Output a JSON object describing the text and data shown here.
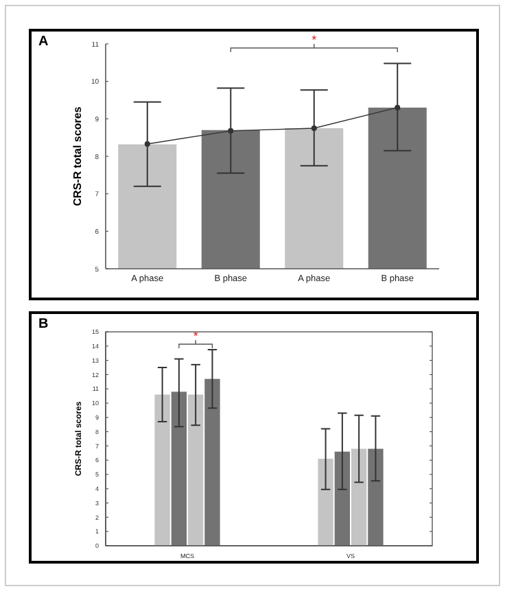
{
  "chart_data": [
    {
      "type": "bar",
      "title": "A",
      "ylabel": "CRS-R total scores",
      "categories": [
        "A phase",
        "B phase",
        "A phase",
        "B phase"
      ],
      "ylim": [
        5,
        11
      ],
      "yticks": [
        5,
        6,
        7,
        8,
        9,
        10,
        11
      ],
      "annotations": [
        "*"
      ],
      "series": [
        {
          "colors": [
            "#c4c4c4",
            "#737373",
            "#c4c4c4",
            "#737373"
          ],
          "values": [
            8.32,
            8.7,
            8.75,
            9.3
          ],
          "errors": [
            [
              7.2,
              9.45
            ],
            [
              7.55,
              9.82
            ],
            [
              7.75,
              9.77
            ],
            [
              8.15,
              10.48
            ]
          ]
        },
        {
          "type": "line",
          "color": "#333333",
          "marker": "circle",
          "values": [
            8.33,
            8.68,
            8.75,
            9.3
          ]
        }
      ]
    },
    {
      "type": "bar",
      "title": "B",
      "ylabel": "CRS-R total scores",
      "categories": [
        "MCS",
        "VS"
      ],
      "ylim": [
        0,
        15
      ],
      "yticks": [
        0,
        1,
        2,
        3,
        4,
        5,
        6,
        7,
        8,
        9,
        10,
        11,
        12,
        13,
        14,
        15
      ],
      "annotations": [
        "*"
      ],
      "series": [
        {
          "color": "#c4c4c4",
          "values": [
            10.6,
            6.1
          ],
          "errors": [
            [
              8.7,
              12.5
            ],
            [
              3.95,
              8.2
            ]
          ]
        },
        {
          "color": "#737373",
          "values": [
            10.8,
            6.6
          ],
          "errors": [
            [
              8.35,
              13.1
            ],
            [
              3.95,
              9.3
            ]
          ]
        },
        {
          "color": "#c4c4c4",
          "values": [
            10.6,
            6.8
          ],
          "errors": [
            [
              8.45,
              12.7
            ],
            [
              4.45,
              9.15
            ]
          ]
        },
        {
          "color": "#737373",
          "values": [
            11.7,
            6.8
          ],
          "errors": [
            [
              9.65,
              13.75
            ],
            [
              4.55,
              9.1
            ]
          ]
        }
      ]
    }
  ]
}
